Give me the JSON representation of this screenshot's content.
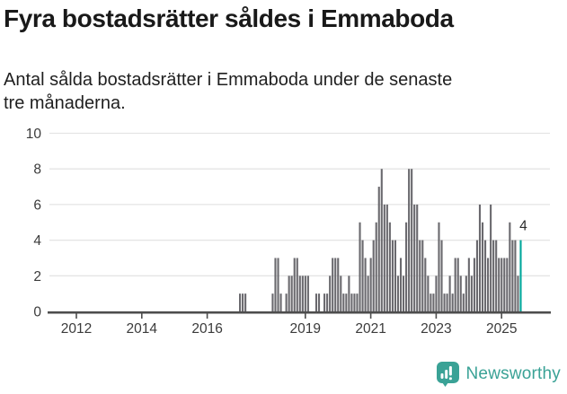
{
  "header": {
    "title": "Fyra bostadsrätter såldes i Emmaboda",
    "subtitle_lines": [
      "Antal sålda bostadsrätter i Emmaboda under de senaste",
      "tre månaderna."
    ]
  },
  "chart_data": {
    "type": "bar",
    "title": "Antal sålda bostadsrätter i Emmaboda under de senaste tre månaderna",
    "ylim": [
      0,
      10
    ],
    "y_ticks": [
      0,
      2,
      4,
      6,
      8,
      10
    ],
    "x_tick_years": [
      2012,
      2014,
      2016,
      2019,
      2021,
      2023,
      2025
    ],
    "grid": true,
    "start_month": "2011-01",
    "series": [
      {
        "year": 2011,
        "values": [
          0,
          0,
          0,
          0,
          0,
          0,
          0,
          0,
          0,
          0,
          0,
          0
        ]
      },
      {
        "year": 2012,
        "values": [
          0,
          0,
          0,
          0,
          0,
          0,
          0,
          0,
          0,
          0,
          0,
          0
        ]
      },
      {
        "year": 2013,
        "values": [
          0,
          0,
          0,
          0,
          0,
          0,
          0,
          0,
          0,
          0,
          0,
          0
        ]
      },
      {
        "year": 2014,
        "values": [
          0,
          0,
          0,
          0,
          0,
          0,
          0,
          0,
          0,
          0,
          0,
          0
        ]
      },
      {
        "year": 2015,
        "values": [
          0,
          0,
          0,
          0,
          0,
          0,
          0,
          0,
          0,
          0,
          0,
          0
        ]
      },
      {
        "year": 2016,
        "values": [
          0,
          0,
          0,
          0,
          0,
          0,
          0,
          0,
          0,
          0,
          0,
          0
        ]
      },
      {
        "year": 2017,
        "values": [
          1,
          1,
          1,
          0,
          0,
          0,
          0,
          0,
          0,
          0,
          0,
          0
        ]
      },
      {
        "year": 2018,
        "values": [
          1,
          3,
          3,
          1,
          0,
          1,
          2,
          2,
          3,
          3,
          2,
          2
        ]
      },
      {
        "year": 2019,
        "values": [
          2,
          2,
          0,
          0,
          1,
          1,
          0,
          1,
          1,
          2,
          3,
          3
        ]
      },
      {
        "year": 2020,
        "values": [
          3,
          2,
          1,
          1,
          2,
          1,
          1,
          1,
          5,
          4,
          3,
          2
        ]
      },
      {
        "year": 2021,
        "values": [
          3,
          4,
          5,
          7,
          8,
          6,
          6,
          5,
          4,
          4,
          2,
          3
        ]
      },
      {
        "year": 2022,
        "values": [
          2,
          5,
          8,
          8,
          6,
          6,
          4,
          4,
          3,
          2,
          1,
          1
        ]
      },
      {
        "year": 2023,
        "values": [
          2,
          5,
          4,
          1,
          1,
          2,
          1,
          3,
          3,
          2,
          1,
          2
        ]
      },
      {
        "year": 2024,
        "values": [
          3,
          2,
          3,
          4,
          6,
          5,
          4,
          3,
          6,
          4,
          4,
          3
        ]
      },
      {
        "year": 2025,
        "values": [
          3,
          3,
          3,
          5,
          4,
          4,
          2,
          4
        ]
      }
    ],
    "highlight_last": true,
    "annotation": {
      "text": "4"
    },
    "colors": {
      "bar": "#6a696e",
      "highlight": "#00a79b",
      "grid": "#e4e4e4",
      "axis": "#4d4d4d",
      "tick_label": "#3b3b3b",
      "annotation": "#2b2b2b"
    }
  },
  "logo": {
    "text": "Newsworthy",
    "color": "#3aa296"
  }
}
